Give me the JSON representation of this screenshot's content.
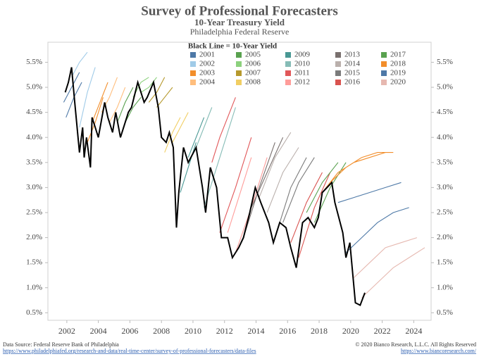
{
  "chart_data": {
    "type": "line",
    "title": "Survey of Professional Forecasters",
    "subtitle": "10-Year Treasury Yield",
    "source_org": "Philadelphia Federal Reserve",
    "legend_title": "Black Line = 10-Year Yield",
    "xlim": [
      2000.8,
      2025.1
    ],
    "xticks": [
      2002,
      2004,
      2006,
      2008,
      2010,
      2012,
      2014,
      2016,
      2018,
      2020,
      2022,
      2024
    ],
    "ylim": [
      0.35,
      5.9
    ],
    "yticks": [
      {
        "value": 0.5,
        "label": "0.5%"
      },
      {
        "value": 1.0,
        "label": "1.0%"
      },
      {
        "value": 1.5,
        "label": "1.5%"
      },
      {
        "value": 2.0,
        "label": "2.0%"
      },
      {
        "value": 2.5,
        "label": "2.5%"
      },
      {
        "value": 3.0,
        "label": "3.0%"
      },
      {
        "value": 3.5,
        "label": "3.5%"
      },
      {
        "value": 4.0,
        "label": "4.0%"
      },
      {
        "value": 4.5,
        "label": "4.5%"
      },
      {
        "value": 5.0,
        "label": "5.0%"
      },
      {
        "value": 5.5,
        "label": "5.5%"
      }
    ],
    "yield": {
      "color": "#000000",
      "x": [
        2001.9,
        2002.1,
        2002.3,
        2002.5,
        2002.8,
        2003.0,
        2003.1,
        2003.25,
        2003.5,
        2003.6,
        2003.8,
        2004.0,
        2004.4,
        2004.6,
        2004.9,
        2005.1,
        2005.4,
        2005.7,
        2005.9,
        2006.1,
        2006.5,
        2006.9,
        2007.1,
        2007.5,
        2007.8,
        2008.0,
        2008.3,
        2008.5,
        2008.75,
        2008.95,
        2009.1,
        2009.4,
        2009.7,
        2010.2,
        2010.6,
        2010.8,
        2011.1,
        2011.5,
        2011.8,
        2012.2,
        2012.5,
        2012.9,
        2013.2,
        2013.6,
        2013.95,
        2014.3,
        2014.8,
        2015.1,
        2015.5,
        2015.9,
        2016.2,
        2016.55,
        2016.95,
        2017.3,
        2017.7,
        2017.95,
        2018.2,
        2018.8,
        2019.0,
        2019.5,
        2019.7,
        2019.95,
        2020.3,
        2020.6,
        2020.9
      ],
      "values": [
        4.9,
        5.1,
        5.4,
        4.7,
        3.7,
        4.2,
        3.6,
        4.0,
        3.4,
        4.4,
        4.2,
        4.0,
        4.7,
        4.4,
        4.1,
        4.5,
        4.0,
        4.3,
        4.5,
        4.6,
        5.1,
        4.7,
        4.8,
        5.1,
        4.6,
        4.0,
        3.9,
        4.1,
        3.8,
        2.2,
        2.9,
        3.8,
        3.5,
        3.8,
        3.0,
        2.5,
        3.4,
        3.0,
        2.0,
        2.0,
        1.6,
        1.8,
        2.0,
        2.5,
        3.0,
        2.7,
        2.3,
        1.9,
        2.3,
        2.2,
        1.8,
        1.4,
        2.3,
        2.4,
        2.2,
        2.4,
        2.9,
        3.1,
        2.7,
        2.1,
        1.6,
        1.9,
        0.7,
        0.65,
        0.9
      ]
    },
    "series": [
      {
        "name": "2001",
        "color": "#4e79a7",
        "x": [
          2001.8,
          2002.3,
          2002.8,
          null,
          2001.95,
          2002.45,
          2002.95
        ],
        "values": [
          4.7,
          5.0,
          5.3,
          null,
          4.4,
          4.8,
          5.1
        ]
      },
      {
        "name": "2002",
        "color": "#a0cbe8",
        "x": [
          2002.3,
          2002.8,
          2003.3,
          null,
          2002.8,
          2003.3,
          2003.8
        ],
        "values": [
          5.2,
          5.5,
          5.7,
          null,
          4.2,
          4.9,
          5.4
        ]
      },
      {
        "name": "2003",
        "color": "#f28e2b",
        "x": [
          2003.3,
          2003.8,
          2004.3,
          null,
          2003.6,
          2004.1,
          2004.6
        ],
        "values": [
          3.9,
          4.3,
          4.8,
          null,
          4.3,
          4.7,
          5.1
        ]
      },
      {
        "name": "2004",
        "color": "#ffbe7d",
        "x": [
          2004.2,
          2004.7,
          2005.2,
          null,
          2004.7,
          2005.2,
          2005.7
        ],
        "values": [
          4.5,
          4.8,
          5.2,
          null,
          4.3,
          4.6,
          5.0
        ]
      },
      {
        "name": "2005",
        "color": "#59a14f",
        "x": [
          2005.2,
          2005.7,
          2006.2,
          null,
          2005.7,
          2006.2,
          2006.7
        ],
        "values": [
          4.3,
          4.7,
          5.0,
          null,
          4.3,
          4.6,
          4.8
        ]
      },
      {
        "name": "2006",
        "color": "#8cd17d",
        "x": [
          2006.2,
          2006.7,
          2007.2,
          null,
          2006.7,
          2007.2,
          2007.7
        ],
        "values": [
          4.8,
          5.1,
          5.2,
          null,
          4.9,
          5.0,
          5.2
        ]
      },
      {
        "name": "2007",
        "color": "#b6992d",
        "x": [
          2007.2,
          2007.7,
          2008.2,
          null,
          2007.7,
          2008.2,
          2008.7
        ],
        "values": [
          4.7,
          4.9,
          5.2,
          null,
          4.6,
          4.8,
          5.0
        ]
      },
      {
        "name": "2008",
        "color": "#f1ce63",
        "x": [
          2008.2,
          2008.7,
          2009.2,
          null,
          2008.7,
          2009.2,
          2009.7
        ],
        "values": [
          3.7,
          4.1,
          4.4,
          null,
          3.9,
          4.2,
          4.5
        ]
      },
      {
        "name": "2009",
        "color": "#499894",
        "x": [
          2009.2,
          2009.7,
          2010.2,
          null,
          2009.7,
          2010.2,
          2010.7
        ],
        "values": [
          2.9,
          3.4,
          3.9,
          null,
          3.6,
          4.0,
          4.4
        ]
      },
      {
        "name": "2010",
        "color": "#86bcb6",
        "x": [
          2010.2,
          2010.7,
          2011.2,
          null,
          2010.7,
          2011.7,
          2012.7
        ],
        "values": [
          3.8,
          4.2,
          4.6,
          null,
          2.6,
          3.6,
          4.6
        ]
      },
      {
        "name": "2011",
        "color": "#e15759",
        "x": [
          2011.2,
          2011.7,
          2012.7,
          null,
          2011.7,
          2012.7,
          2013.7
        ],
        "values": [
          3.5,
          4.0,
          4.8,
          null,
          2.1,
          3.0,
          4.0
        ]
      },
      {
        "name": "2012",
        "color": "#ff9d9a",
        "x": [
          2012.2,
          2012.7,
          2013.7,
          null,
          2012.7,
          2013.7,
          2014.7
        ],
        "values": [
          2.1,
          2.6,
          3.6,
          null,
          1.7,
          2.6,
          3.6
        ]
      },
      {
        "name": "2013",
        "color": "#79706e",
        "x": [
          2013.2,
          2014.2,
          2015.2,
          null,
          2013.7,
          2014.7,
          2015.7
        ],
        "values": [
          2.0,
          3.0,
          3.9,
          null,
          2.6,
          3.3,
          4.0
        ]
      },
      {
        "name": "2014",
        "color": "#bab0ac",
        "x": [
          2014.2,
          2015.2,
          2016.2,
          null,
          2014.7,
          2015.7,
          2016.7
        ],
        "values": [
          2.8,
          3.6,
          4.1,
          null,
          2.5,
          3.3,
          3.8
        ]
      },
      {
        "name": "2015",
        "color": "#7b7b7b",
        "x": [
          2015.2,
          2016.2,
          2017.2,
          null,
          2015.7,
          2016.7,
          2017.7
        ],
        "values": [
          2.0,
          3.0,
          3.6,
          null,
          2.3,
          3.1,
          3.6
        ]
      },
      {
        "name": "2016",
        "color": "#d9534f",
        "x": [
          2016.2,
          2017.2,
          2018.2,
          null,
          2016.7,
          2017.7,
          2018.7
        ],
        "values": [
          1.9,
          2.7,
          3.3,
          null,
          1.6,
          2.6,
          3.3
        ]
      },
      {
        "name": "2017",
        "color": "#59a14f",
        "x": [
          2017.2,
          2018.2,
          2019.2,
          null,
          2017.7,
          2018.7,
          2019.7
        ],
        "values": [
          2.5,
          3.1,
          3.5,
          null,
          2.3,
          3.0,
          3.5
        ]
      },
      {
        "name": "2018",
        "color": "#f28e2b",
        "x": [
          2018.2,
          2019.2,
          2020.2,
          2021.2,
          2022.2,
          null,
          2018.7,
          2019.7,
          2020.7,
          2021.7,
          2022.7
        ],
        "values": [
          2.9,
          3.3,
          3.5,
          3.6,
          3.7,
          null,
          3.1,
          3.4,
          3.6,
          3.7,
          3.7
        ]
      },
      {
        "name": "2019",
        "color": "#4e79a7",
        "x": [
          2019.2,
          2020.2,
          2021.2,
          2022.2,
          2023.2,
          null,
          2019.7,
          2020.7,
          2021.7,
          2022.7,
          2023.7
        ],
        "values": [
          2.7,
          2.8,
          2.9,
          3.0,
          3.1,
          null,
          1.7,
          2.0,
          2.3,
          2.5,
          2.6
        ]
      },
      {
        "name": "2020",
        "color": "#e6b8b0",
        "x": [
          2020.2,
          2021.2,
          2022.2,
          2023.2,
          2024.2,
          null,
          2020.7,
          2021.7,
          2022.7,
          2023.7,
          2024.7
        ],
        "values": [
          1.2,
          1.5,
          1.8,
          1.9,
          2.0,
          null,
          0.8,
          1.1,
          1.4,
          1.6,
          1.8
        ]
      }
    ],
    "source": "Data Source: Federal Reserve Bank of Philadelphia",
    "source_url": "https://www.philadelphiafed.org/research-and-data/real-time-center/survey-of-professional-forecasters/data-files",
    "copyright": "© 2020 Bianco Research, L.L.C. All Rights Reserved",
    "copyright_url": "https://www.biancoresearch.com/"
  }
}
